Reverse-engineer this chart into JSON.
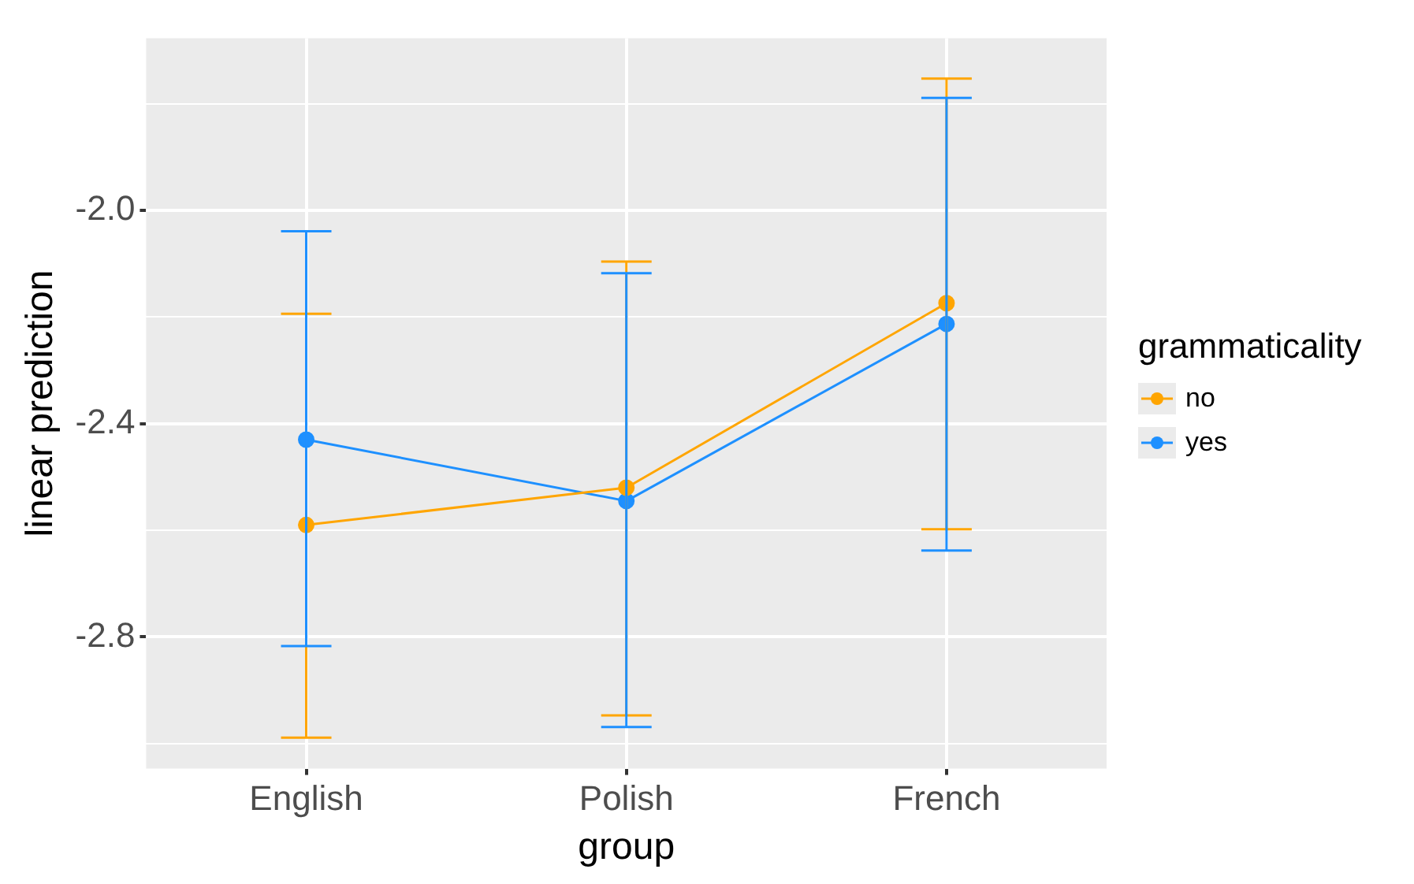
{
  "chart_data": {
    "type": "line",
    "xlabel": "group",
    "ylabel": "linear prediction",
    "legend_title": "grammaticality",
    "categories": [
      "English",
      "Polish",
      "French"
    ],
    "series": [
      {
        "name": "no",
        "color": "#ffa500",
        "values": [
          -2.59,
          -2.52,
          -2.174
        ],
        "errors": [
          [
            -2.989,
            -2.194
          ],
          [
            -2.947,
            -2.096
          ],
          [
            -2.598,
            -1.753
          ]
        ]
      },
      {
        "name": "yes",
        "color": "#1e90ff",
        "values": [
          -2.43,
          -2.545,
          -2.213
        ],
        "errors": [
          [
            -2.817,
            -2.039
          ],
          [
            -2.969,
            -2.118
          ],
          [
            -2.638,
            -1.789
          ]
        ]
      }
    ],
    "ylim": [
      -3.047,
      -1.677
    ],
    "yticks": [
      {
        "value": -3.0,
        "label": null
      },
      -2.8,
      {
        "value": -2.6,
        "label": null
      },
      -2.4,
      {
        "value": -2.2,
        "label": null
      },
      {
        "value": -2.0,
        "label": "-2.0"
      },
      {
        "value": -1.8,
        "label": null
      }
    ],
    "grid": true,
    "legend": "right",
    "marker": "circle",
    "line_style": "solid"
  }
}
